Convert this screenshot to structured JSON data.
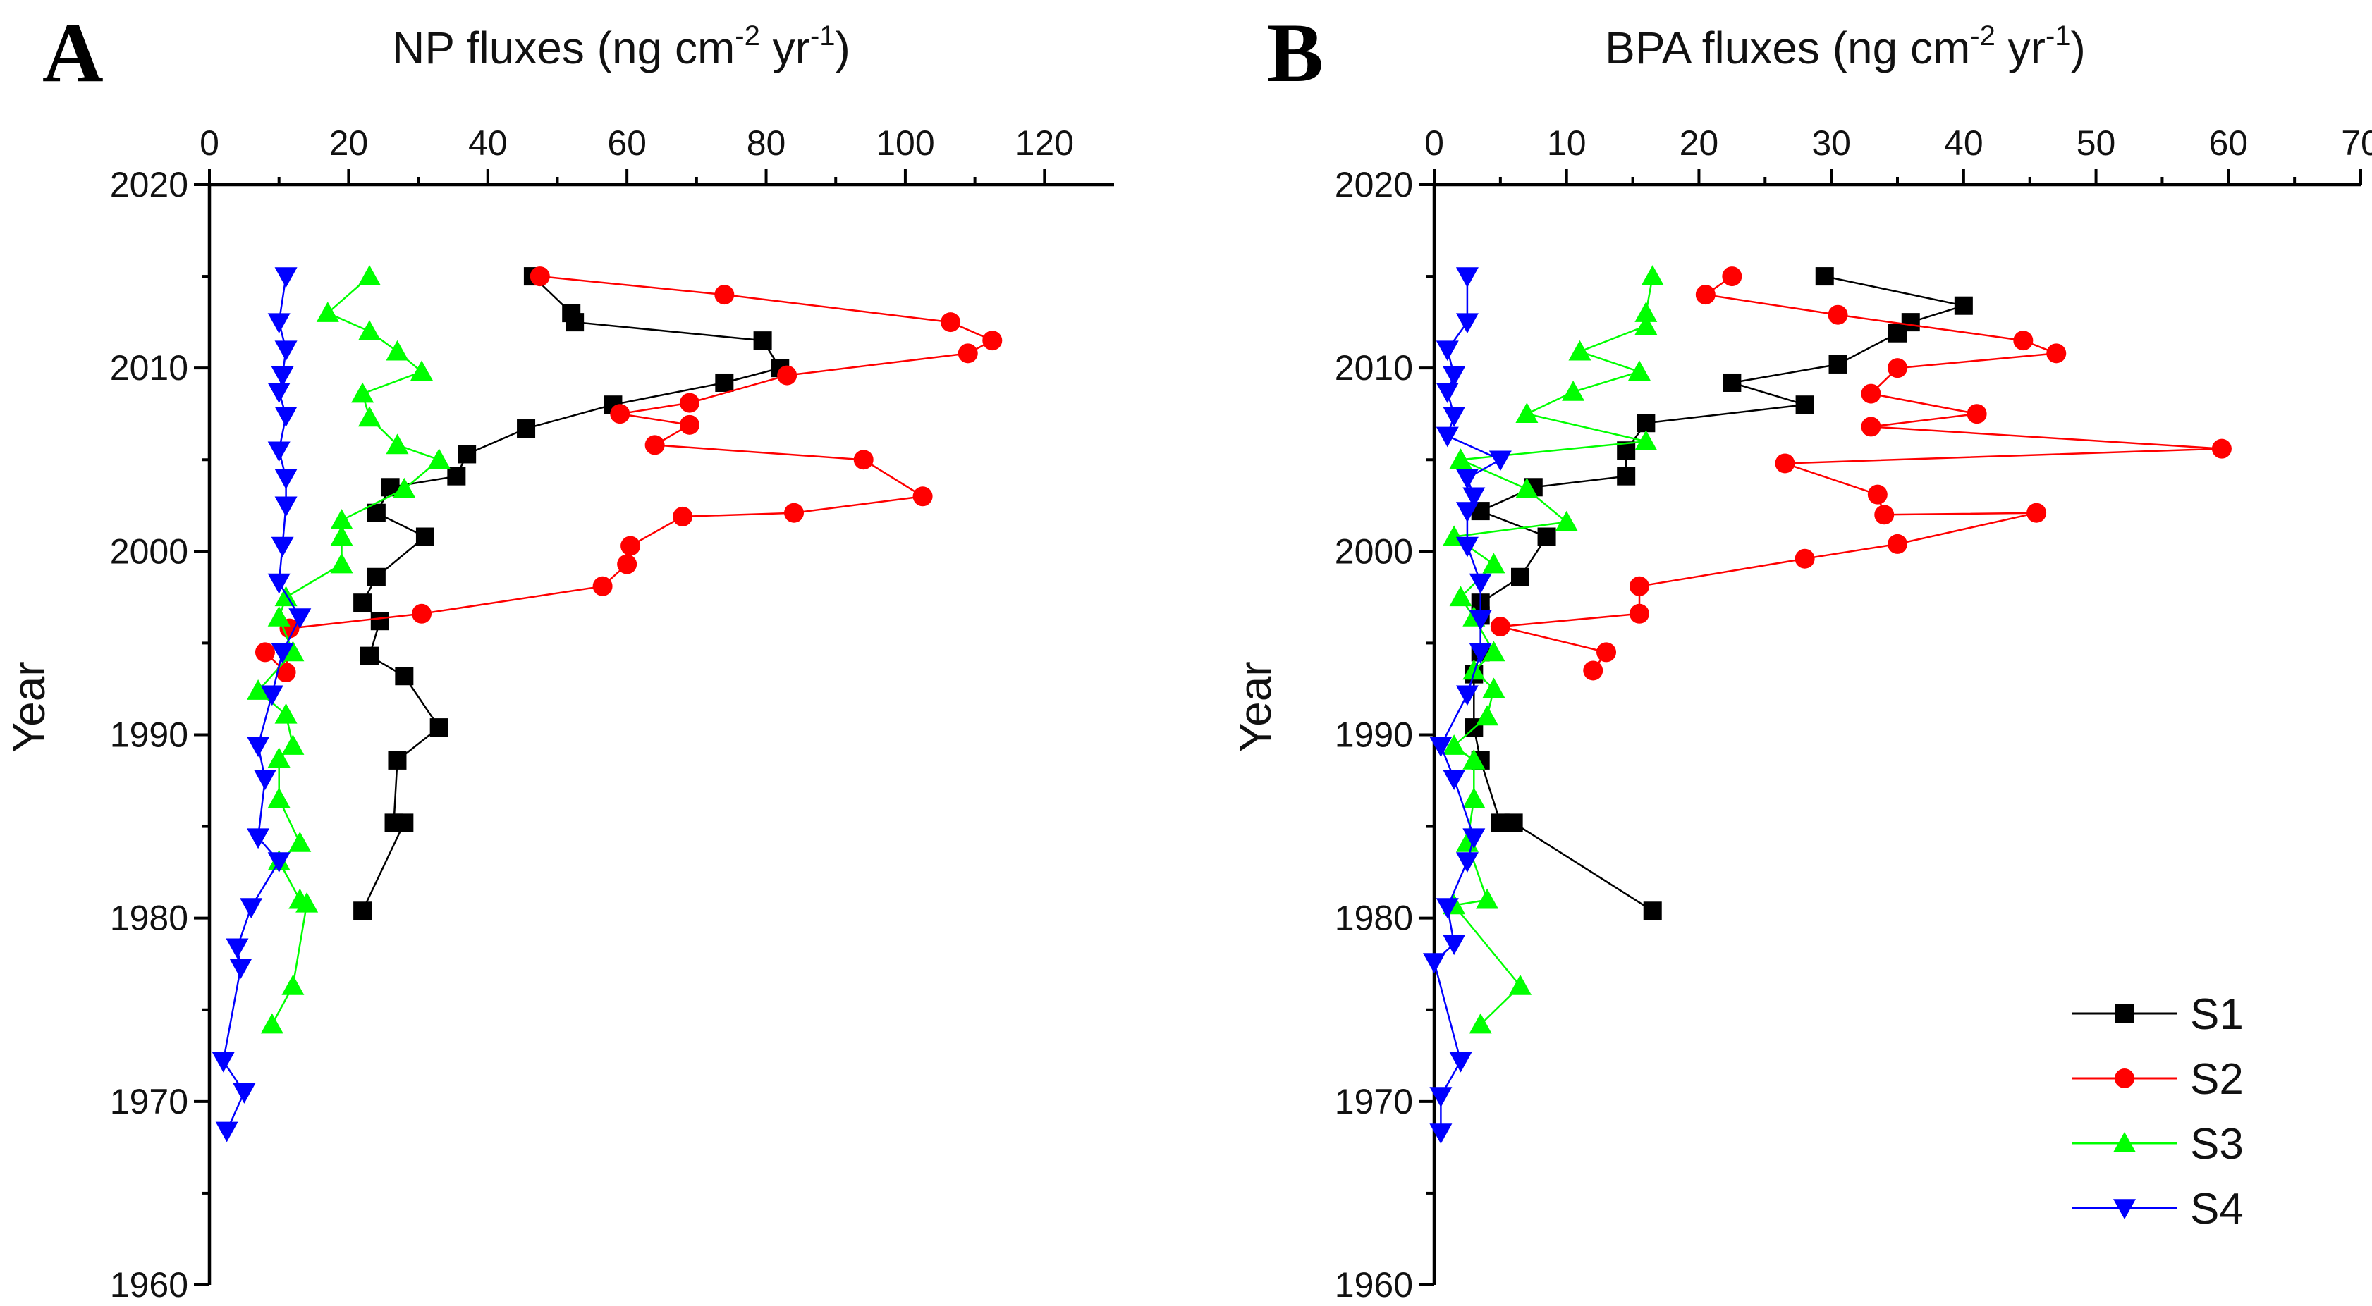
{
  "chart_data": [
    {
      "type": "line",
      "panel_label": "A",
      "title": "NP fluxes (ng cm",
      "title_exp1": "-2",
      "title_mid": " yr",
      "title_exp2": "-1",
      "title_end": ")",
      "ylabel": "Year",
      "x_axis_position": "top",
      "xlim": [
        0,
        130
      ],
      "ylim": [
        1960,
        2020
      ],
      "x_ticks": [
        "0",
        "20",
        "40",
        "60",
        "80",
        "100",
        "120"
      ],
      "y_ticks": [
        "1960",
        "1970",
        "1980",
        "1990",
        "2000",
        "2010",
        "2020"
      ],
      "series": [
        {
          "name": "S1",
          "color": "#000000",
          "marker": "square",
          "points": [
            [
              46.5,
              2015
            ],
            [
              52,
              2013
            ],
            [
              52.5,
              2012.5
            ],
            [
              79.5,
              2011.5
            ],
            [
              82,
              2010
            ],
            [
              74,
              2009.2
            ],
            [
              58,
              2008
            ],
            [
              45.5,
              2006.7
            ],
            [
              37,
              2005.3
            ],
            [
              35.5,
              2004.1
            ],
            [
              26,
              2003.5
            ],
            [
              24,
              2002.1
            ],
            [
              31,
              2000.8
            ],
            [
              24,
              1998.6
            ],
            [
              22,
              1997.2
            ],
            [
              24.5,
              1996.2
            ],
            [
              23,
              1994.3
            ],
            [
              28,
              1993.2
            ],
            [
              33,
              1990.4
            ],
            [
              27,
              1988.6
            ],
            [
              26.5,
              1985.2
            ],
            [
              28,
              1985.2
            ],
            [
              22,
              1980.4
            ]
          ]
        },
        {
          "name": "S2",
          "color": "#ff0000",
          "marker": "circle",
          "points": [
            [
              47.5,
              2015
            ],
            [
              74,
              2014
            ],
            [
              106.5,
              2012.5
            ],
            [
              112.5,
              2011.5
            ],
            [
              109,
              2010.8
            ],
            [
              83,
              2009.6
            ],
            [
              69,
              2008.1
            ],
            [
              59,
              2007.5
            ],
            [
              69,
              2006.9
            ],
            [
              64,
              2005.8
            ],
            [
              94,
              2005
            ],
            [
              102.5,
              2003
            ],
            [
              84,
              2002.1
            ],
            [
              68,
              2001.9
            ],
            [
              60.5,
              2000.3
            ],
            [
              60,
              1999.3
            ],
            [
              56.5,
              1998.1
            ],
            [
              30.5,
              1996.6
            ],
            [
              11.5,
              1995.8
            ],
            [
              11,
              1993.4
            ],
            [
              8,
              1994.5
            ]
          ]
        },
        {
          "name": "S3",
          "color": "#00ff00",
          "marker": "triangle-up",
          "points": [
            [
              23,
              2015
            ],
            [
              17,
              2013
            ],
            [
              23,
              2012
            ],
            [
              27,
              2010.9
            ],
            [
              30.5,
              2009.8
            ],
            [
              22,
              2008.6
            ],
            [
              23,
              2007.3
            ],
            [
              27,
              2005.8
            ],
            [
              33,
              2005
            ],
            [
              28,
              2003.4
            ],
            [
              19,
              2001.7
            ],
            [
              19,
              2000.8
            ],
            [
              19,
              1999.3
            ],
            [
              11,
              1997.5
            ],
            [
              10,
              1996.4
            ],
            [
              12,
              1994.5
            ],
            [
              7,
              1992.4
            ],
            [
              11,
              1991.1
            ],
            [
              12,
              1989.4
            ],
            [
              10,
              1988.7
            ],
            [
              10,
              1986.5
            ],
            [
              13,
              1984.1
            ],
            [
              10,
              1983.1
            ],
            [
              13,
              1981
            ],
            [
              14,
              1980.8
            ],
            [
              12,
              1976.3
            ],
            [
              9,
              1974.2
            ]
          ]
        },
        {
          "name": "S4",
          "color": "#0000ff",
          "marker": "triangle-down",
          "points": [
            [
              11,
              2015
            ],
            [
              10,
              2012.5
            ],
            [
              11,
              2011
            ],
            [
              10.5,
              2009.6
            ],
            [
              10,
              2008.7
            ],
            [
              11,
              2007.4
            ],
            [
              10,
              2005.5
            ],
            [
              11,
              2004
            ],
            [
              11,
              2002.5
            ],
            [
              10.5,
              2000.3
            ],
            [
              10,
              1998.3
            ],
            [
              13,
              1996.4
            ],
            [
              10.5,
              1994.5
            ],
            [
              9,
              1992.2
            ],
            [
              7,
              1989.4
            ],
            [
              8,
              1987.6
            ],
            [
              7,
              1984.4
            ],
            [
              10,
              1983.1
            ],
            [
              6,
              1980.6
            ],
            [
              4,
              1978.4
            ],
            [
              4.5,
              1977.3
            ],
            [
              2,
              1972.2
            ],
            [
              5,
              1970.5
            ],
            [
              2.5,
              1968.4
            ]
          ]
        }
      ]
    },
    {
      "type": "line",
      "panel_label": "B",
      "title": "BPA fluxes (ng cm",
      "title_exp1": "-2",
      "title_mid": " yr",
      "title_exp2": "-1",
      "title_end": ")",
      "ylabel": "Year",
      "x_axis_position": "top",
      "xlim": [
        0,
        70
      ],
      "ylim": [
        1960,
        2020
      ],
      "x_ticks": [
        "0",
        "10",
        "20",
        "30",
        "40",
        "50",
        "60",
        "70"
      ],
      "y_ticks": [
        "1960",
        "1970",
        "1980",
        "1990",
        "2000",
        "2010",
        "2020"
      ],
      "legend": {
        "position": "bottom-right",
        "entries": [
          "S1",
          "S2",
          "S3",
          "S4"
        ]
      },
      "series": [
        {
          "name": "S1",
          "color": "#000000",
          "marker": "square",
          "points": [
            [
              29.5,
              2015
            ],
            [
              40,
              2013.4
            ],
            [
              36,
              2012.5
            ],
            [
              35,
              2011.9
            ],
            [
              30.5,
              2010.2
            ],
            [
              22.5,
              2009.2
            ],
            [
              28,
              2008
            ],
            [
              16,
              2007
            ],
            [
              14.5,
              2005.5
            ],
            [
              14.5,
              2004.1
            ],
            [
              7.5,
              2003.5
            ],
            [
              3.5,
              2002.2
            ],
            [
              8.5,
              2000.8
            ],
            [
              6.5,
              1998.6
            ],
            [
              3.5,
              1997.2
            ],
            [
              3.5,
              1996.5
            ],
            [
              3.5,
              1994.5
            ],
            [
              3,
              1993.3
            ],
            [
              3,
              1990.4
            ],
            [
              3.5,
              1988.6
            ],
            [
              5,
              1985.2
            ],
            [
              6,
              1985.2
            ],
            [
              16.5,
              1980.4
            ]
          ]
        },
        {
          "name": "S2",
          "color": "#ff0000",
          "marker": "circle",
          "points": [
            [
              22.5,
              2015
            ],
            [
              20.5,
              2014
            ],
            [
              30.5,
              2012.9
            ],
            [
              44.5,
              2011.5
            ],
            [
              47,
              2010.8
            ],
            [
              35,
              2010
            ],
            [
              33,
              2008.6
            ],
            [
              41,
              2007.5
            ],
            [
              33,
              2006.8
            ],
            [
              59.5,
              2005.6
            ],
            [
              26.5,
              2004.8
            ],
            [
              33.5,
              2003.1
            ],
            [
              34,
              2002
            ],
            [
              45.5,
              2002.1
            ],
            [
              35,
              2000.4
            ],
            [
              28,
              1999.6
            ],
            [
              15.5,
              1998.1
            ],
            [
              15.5,
              1996.6
            ],
            [
              5,
              1995.9
            ],
            [
              13,
              1994.5
            ],
            [
              12,
              1993.5
            ]
          ]
        },
        {
          "name": "S3",
          "color": "#00ff00",
          "marker": "triangle-up",
          "points": [
            [
              16.5,
              2015
            ],
            [
              16,
              2013
            ],
            [
              16,
              2012.3
            ],
            [
              11,
              2010.9
            ],
            [
              15.5,
              2009.8
            ],
            [
              10.5,
              2008.7
            ],
            [
              7,
              2007.5
            ],
            [
              16,
              2006
            ],
            [
              2,
              2005
            ],
            [
              7,
              2003.4
            ],
            [
              10,
              2001.6
            ],
            [
              1.5,
              2000.8
            ],
            [
              4.5,
              1999.3
            ],
            [
              2,
              1997.5
            ],
            [
              3,
              1996.4
            ],
            [
              4.5,
              1994.5
            ],
            [
              3,
              1993.5
            ],
            [
              4.5,
              1992.5
            ],
            [
              4,
              1991
            ],
            [
              1.5,
              1989.4
            ],
            [
              3,
              1988.6
            ],
            [
              3,
              1986.5
            ],
            [
              2.5,
              1984.1
            ],
            [
              4,
              1981
            ],
            [
              1.5,
              1980.7
            ],
            [
              6.5,
              1976.3
            ],
            [
              3.5,
              1974.2
            ]
          ]
        },
        {
          "name": "S4",
          "color": "#0000ff",
          "marker": "triangle-down",
          "points": [
            [
              2.5,
              2015
            ],
            [
              2.5,
              2012.5
            ],
            [
              1,
              2011
            ],
            [
              1.5,
              2009.6
            ],
            [
              1,
              2008.7
            ],
            [
              1.5,
              2007.4
            ],
            [
              1,
              2006.3
            ],
            [
              5,
              2005
            ],
            [
              2.5,
              2004
            ],
            [
              3,
              2003
            ],
            [
              2.5,
              2002.2
            ],
            [
              2.5,
              2000.3
            ],
            [
              3.5,
              1998.3
            ],
            [
              3.5,
              1996.3
            ],
            [
              3.5,
              1994.5
            ],
            [
              2.5,
              1992.2
            ],
            [
              0.5,
              1989.4
            ],
            [
              1.5,
              1987.6
            ],
            [
              3,
              1984.4
            ],
            [
              2.5,
              1983.1
            ],
            [
              1,
              1980.6
            ],
            [
              1.5,
              1978.6
            ],
            [
              0,
              1977.6
            ],
            [
              2,
              1972.2
            ],
            [
              0.5,
              1970.3
            ],
            [
              0.5,
              1968.3
            ]
          ]
        }
      ]
    }
  ]
}
